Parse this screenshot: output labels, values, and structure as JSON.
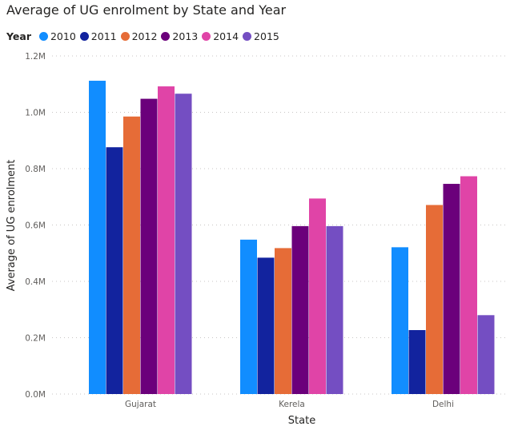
{
  "chart_data": {
    "type": "bar",
    "title": "Average of UG enrolment by State and Year",
    "legend_title": "Year",
    "legend_position": "top-left",
    "xlabel": "State",
    "ylabel": "Average of UG enrolment",
    "categories": [
      "Gujarat",
      "Kerela",
      "Delhi"
    ],
    "ylim": [
      0,
      1200000
    ],
    "yticks": [
      0,
      200000,
      400000,
      600000,
      800000,
      1000000,
      1200000
    ],
    "ytick_labels": [
      "0.0M",
      "0.2M",
      "0.4M",
      "0.6M",
      "0.8M",
      "1.0M",
      "1.2M"
    ],
    "grid": true,
    "series": [
      {
        "name": "2010",
        "color": "#118DFF",
        "values": [
          1112000,
          548000,
          521000
        ]
      },
      {
        "name": "2011",
        "color": "#12239E",
        "values": [
          876000,
          484000,
          227000
        ]
      },
      {
        "name": "2012",
        "color": "#E66C37",
        "values": [
          985000,
          518000,
          671000
        ]
      },
      {
        "name": "2013",
        "color": "#6B007B",
        "values": [
          1048000,
          596000,
          746000
        ]
      },
      {
        "name": "2014",
        "color": "#E044A7",
        "values": [
          1092000,
          694000,
          773000
        ]
      },
      {
        "name": "2015",
        "color": "#744EC2",
        "values": [
          1066000,
          596000,
          280000
        ]
      }
    ]
  }
}
